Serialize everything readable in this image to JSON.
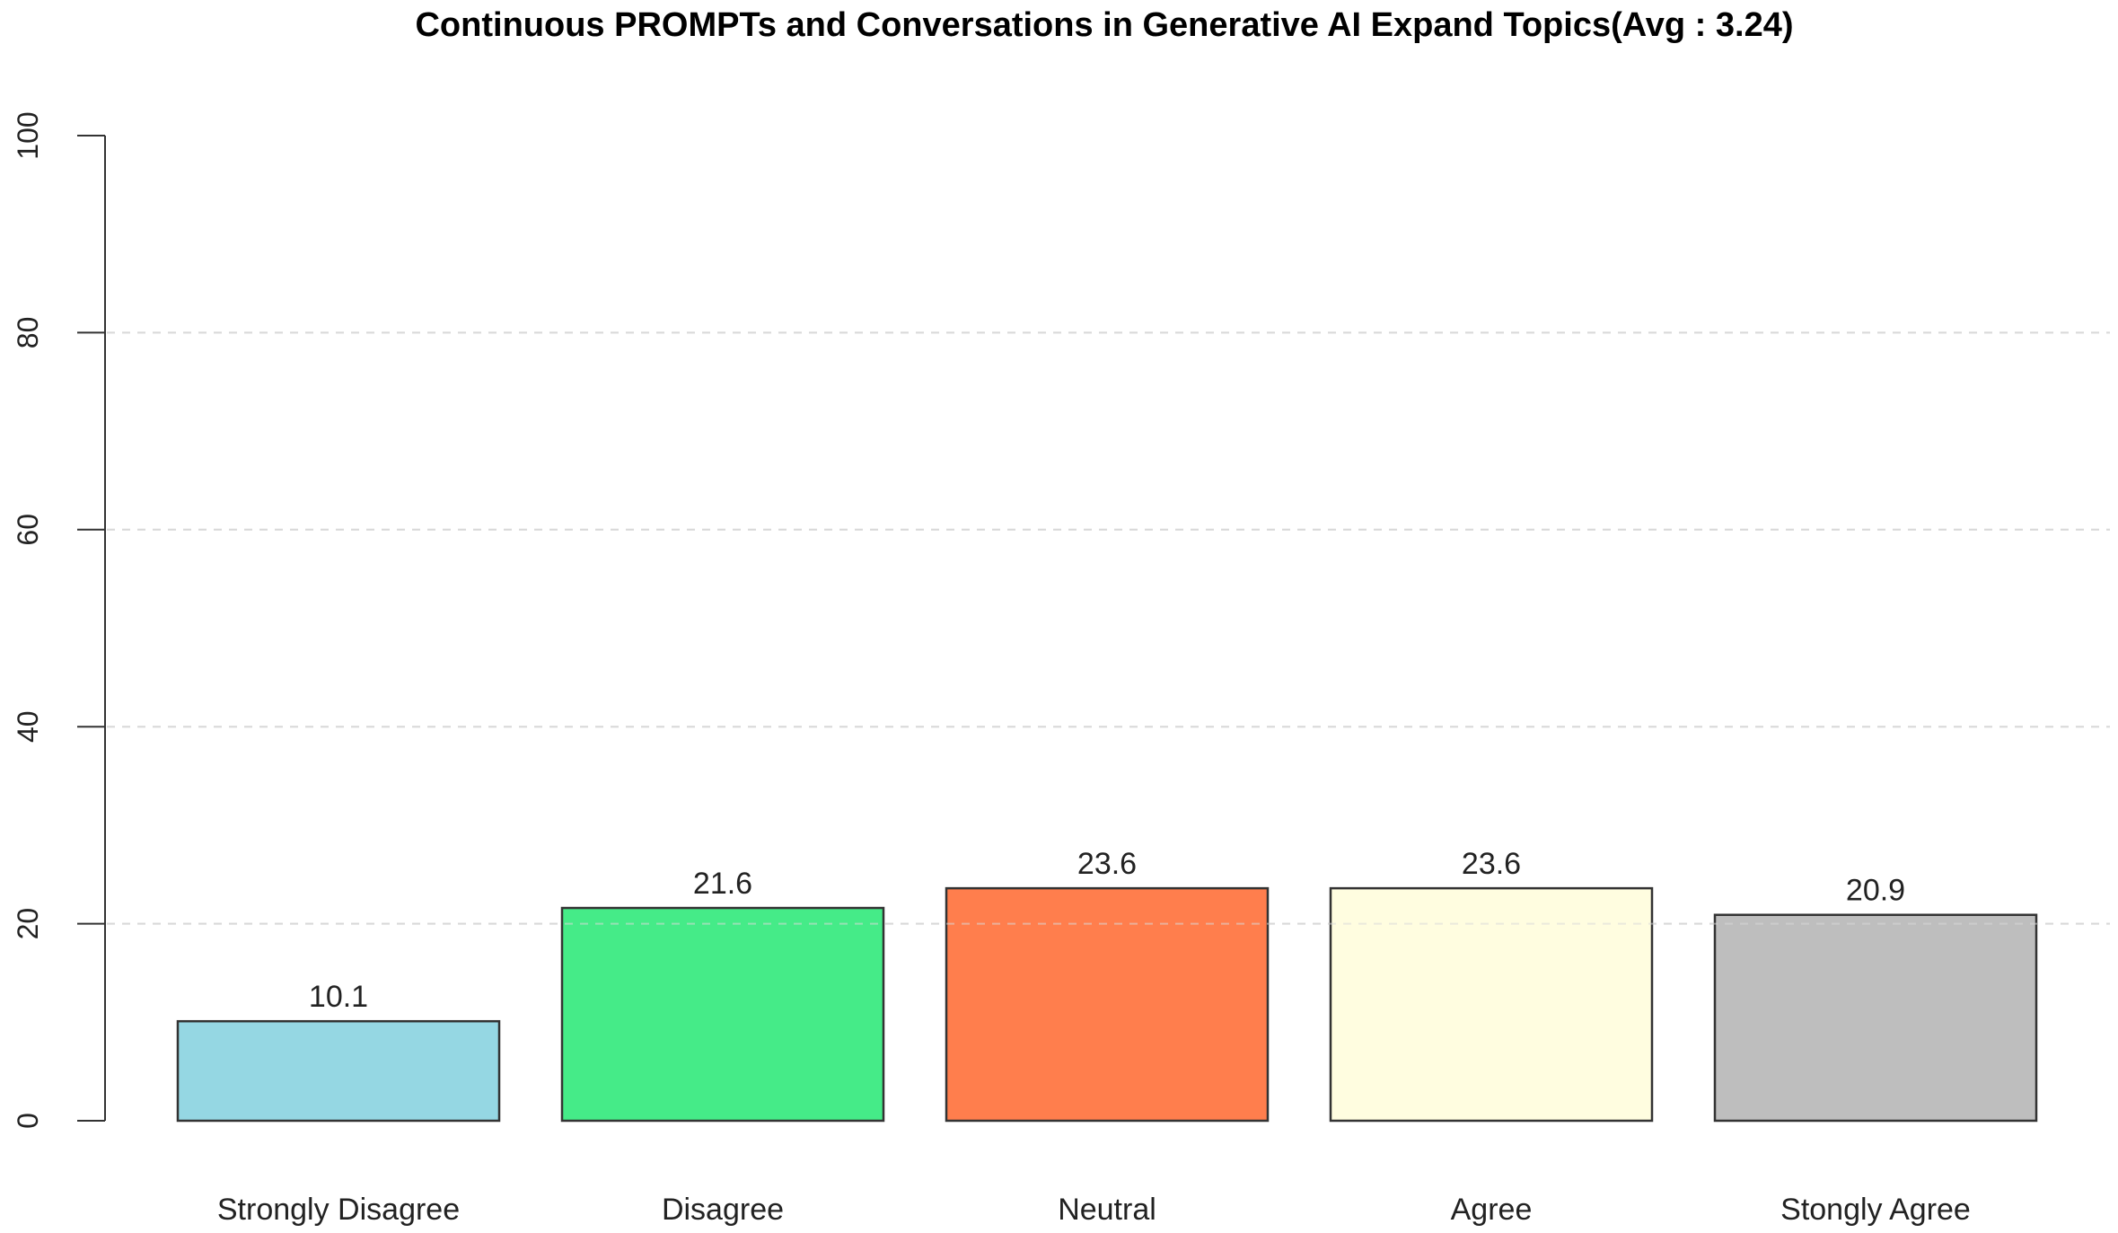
{
  "chart_data": {
    "type": "bar",
    "title": "Continuous PROMPTs and Conversations in Generative AI Expand Topics(Avg : 3.24)",
    "xlabel": "",
    "ylabel": "",
    "ylim": [
      0,
      100
    ],
    "yticks": [
      0,
      20,
      40,
      60,
      80,
      100
    ],
    "grid": "horizontal dashed",
    "categories": [
      "Strongly Disagree",
      "Disagree",
      "Neutral",
      "Agree",
      "Stongly Agree"
    ],
    "values": [
      10.1,
      21.6,
      23.6,
      23.6,
      20.9
    ],
    "value_labels": [
      "10.1",
      "21.6",
      "23.6",
      "23.6",
      "20.9"
    ],
    "colors": [
      "#95D7E3",
      "#45EB88",
      "#FF7E4D",
      "#FFFDE0",
      "#BEBEBE"
    ]
  }
}
